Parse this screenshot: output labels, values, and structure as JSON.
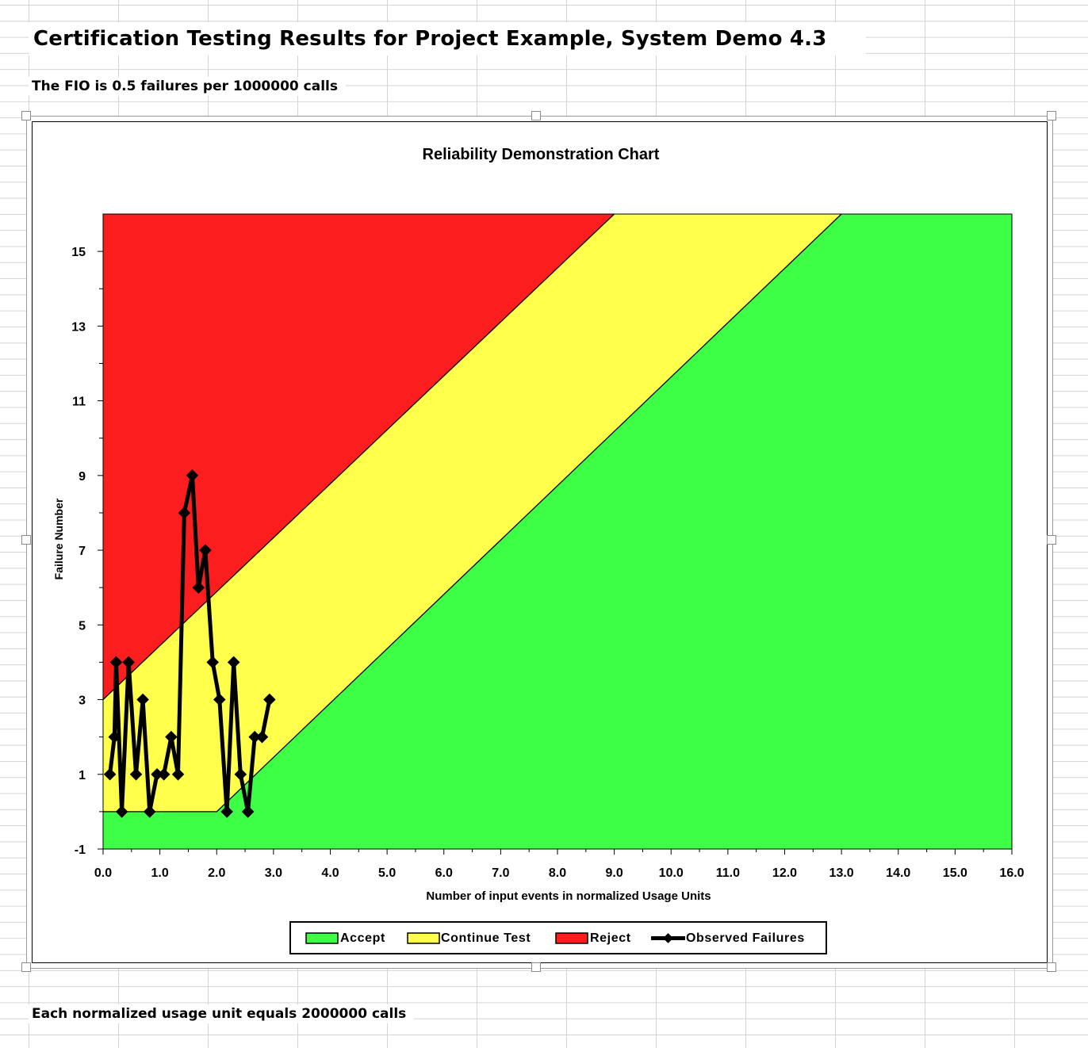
{
  "sheet": {
    "title": "Certification Testing Results for Project Example, System Demo 4.3",
    "fio_note": "The FIO is 0.5 failures per 1000000 calls",
    "unit_note": "Each normalized usage unit equals 2000000 calls"
  },
  "chart_data": {
    "type": "line",
    "title": "Reliability Demonstration Chart",
    "xlabel": "Number of input events in normalized Usage Units",
    "ylabel": "Failure Number",
    "xlim": [
      0,
      16
    ],
    "ylim": [
      -1,
      16
    ],
    "x_ticks": [
      "0.0",
      "1.0",
      "2.0",
      "3.0",
      "4.0",
      "5.0",
      "6.0",
      "7.0",
      "8.0",
      "9.0",
      "10.0",
      "11.0",
      "12.0",
      "13.0",
      "14.0",
      "15.0",
      "16.0"
    ],
    "y_ticks": [
      -1,
      1,
      3,
      5,
      7,
      9,
      11,
      13,
      15
    ],
    "legend_position": "bottom",
    "regions": [
      {
        "name": "Accept",
        "color": "#3cff46"
      },
      {
        "name": "Continue Test",
        "color": "#ffff4c"
      },
      {
        "name": "Reject",
        "color": "#fc1e1e"
      }
    ],
    "reject_boundary": {
      "x": [
        0,
        9.0
      ],
      "y": [
        3,
        16
      ]
    },
    "accept_boundary": {
      "x": [
        0,
        2.0,
        13.0
      ],
      "y": [
        0,
        0,
        16
      ]
    },
    "series": [
      {
        "name": "Observed Failures",
        "color": "#000000",
        "x": [
          0.12,
          0.2,
          0.23,
          0.33,
          0.45,
          0.58,
          0.7,
          0.82,
          0.95,
          1.07,
          1.2,
          1.32,
          1.43,
          1.57,
          1.68,
          1.8,
          1.93,
          2.05,
          2.18,
          2.3,
          2.42,
          2.55,
          2.67,
          2.8,
          2.93
        ],
        "y": [
          1,
          2,
          4,
          0,
          4,
          1,
          3,
          0,
          1,
          1,
          2,
          1,
          8,
          9,
          6,
          7,
          4,
          3,
          0,
          4,
          1,
          0,
          2,
          2,
          3
        ]
      }
    ]
  }
}
